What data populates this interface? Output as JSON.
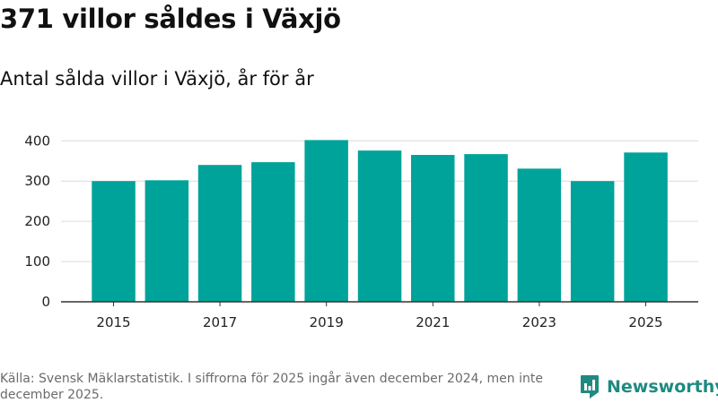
{
  "header": {
    "title": "371 villor såldes i Växjö",
    "subtitle": "Antal sålda villor i Växjö, år för år"
  },
  "chart_data": {
    "type": "bar",
    "title": "371 villor såldes i Växjö",
    "subtitle": "Antal sålda villor i Växjö, år för år",
    "xlabel": "",
    "ylabel": "",
    "categories": [
      "2015",
      "2016",
      "2017",
      "2018",
      "2019",
      "2020",
      "2021",
      "2022",
      "2023",
      "2024",
      "2025"
    ],
    "values": [
      300,
      302,
      340,
      347,
      402,
      376,
      365,
      367,
      331,
      300,
      371
    ],
    "x_tick_labels": [
      "2015",
      "2017",
      "2019",
      "2021",
      "2023",
      "2025"
    ],
    "y_ticks": [
      0,
      100,
      200,
      300,
      400
    ],
    "ylim": [
      0,
      430
    ],
    "grid": true,
    "bar_color": "#00a39a"
  },
  "footer": {
    "source": "Källa: Svensk Mäklarstatistik. I siffrorna för 2025 ingår även december 2024, men inte december 2025.",
    "brand": "Newsworthy"
  },
  "colors": {
    "accent": "#00a39a",
    "brand": "#1f8a81"
  }
}
